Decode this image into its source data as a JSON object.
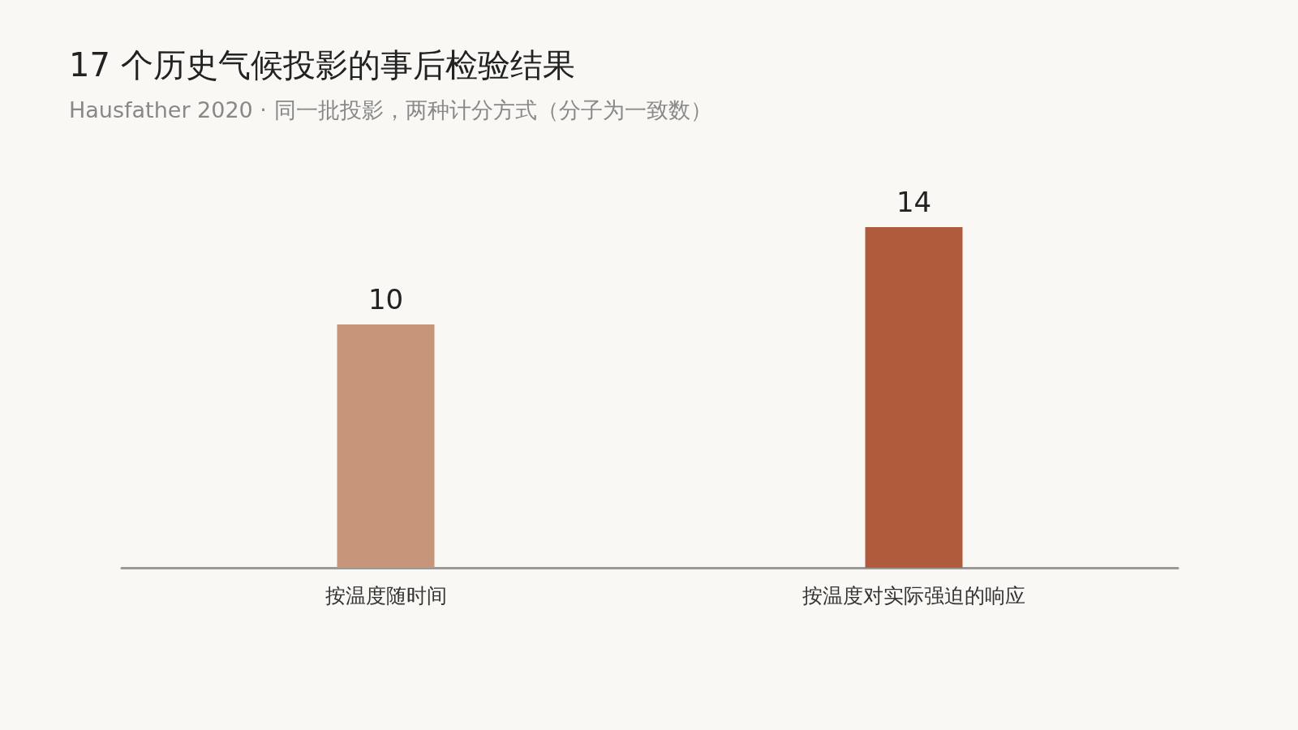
{
  "chart_data": {
    "type": "bar",
    "title": "17 个历史气候投影的事后检验结果",
    "subtitle": "Hausfather 2020 · 同一批投影，两种计分方式（分子为一致数）",
    "categories": [
      "按温度随时间",
      "按温度对实际强迫的响应"
    ],
    "values": [
      10,
      14
    ],
    "colors": [
      "#c6957a",
      "#b05c3c"
    ],
    "data_labels": true
  }
}
